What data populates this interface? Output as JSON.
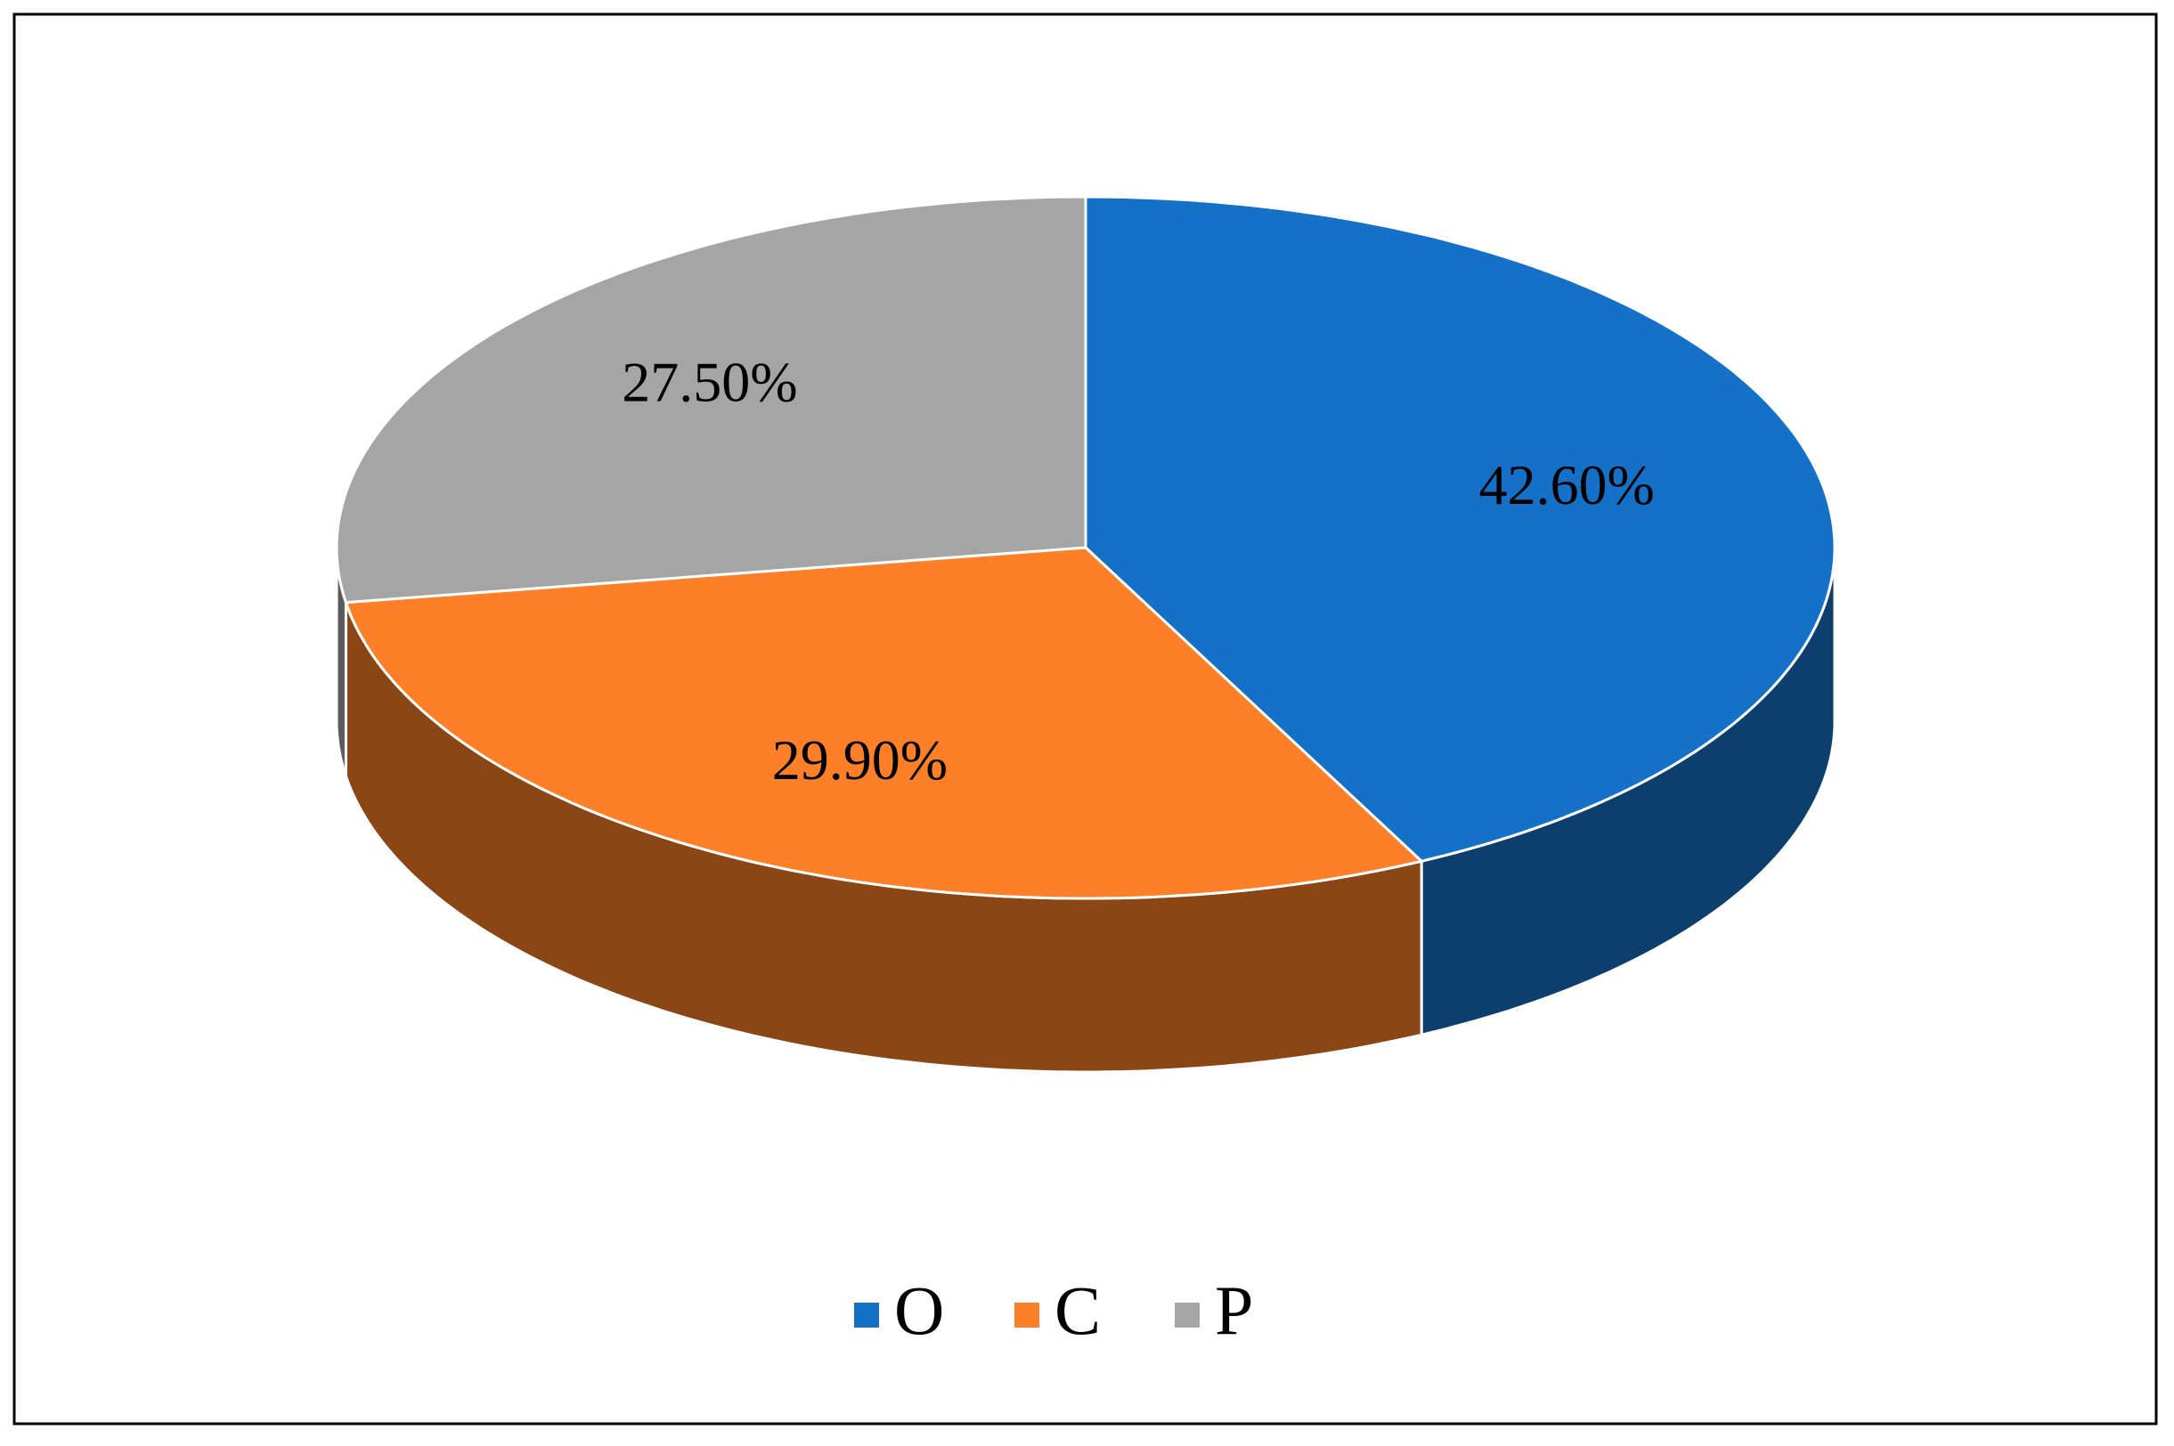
{
  "chart_data": {
    "type": "pie",
    "categories": [
      "O",
      "C",
      "P"
    ],
    "values": [
      42.6,
      29.9,
      27.5
    ],
    "value_labels": [
      "42.60%",
      "29.90%",
      "27.50%"
    ],
    "colors": [
      "#1570c8",
      "#fd7f27",
      "#a5a5a5"
    ],
    "legend": "bottom"
  }
}
